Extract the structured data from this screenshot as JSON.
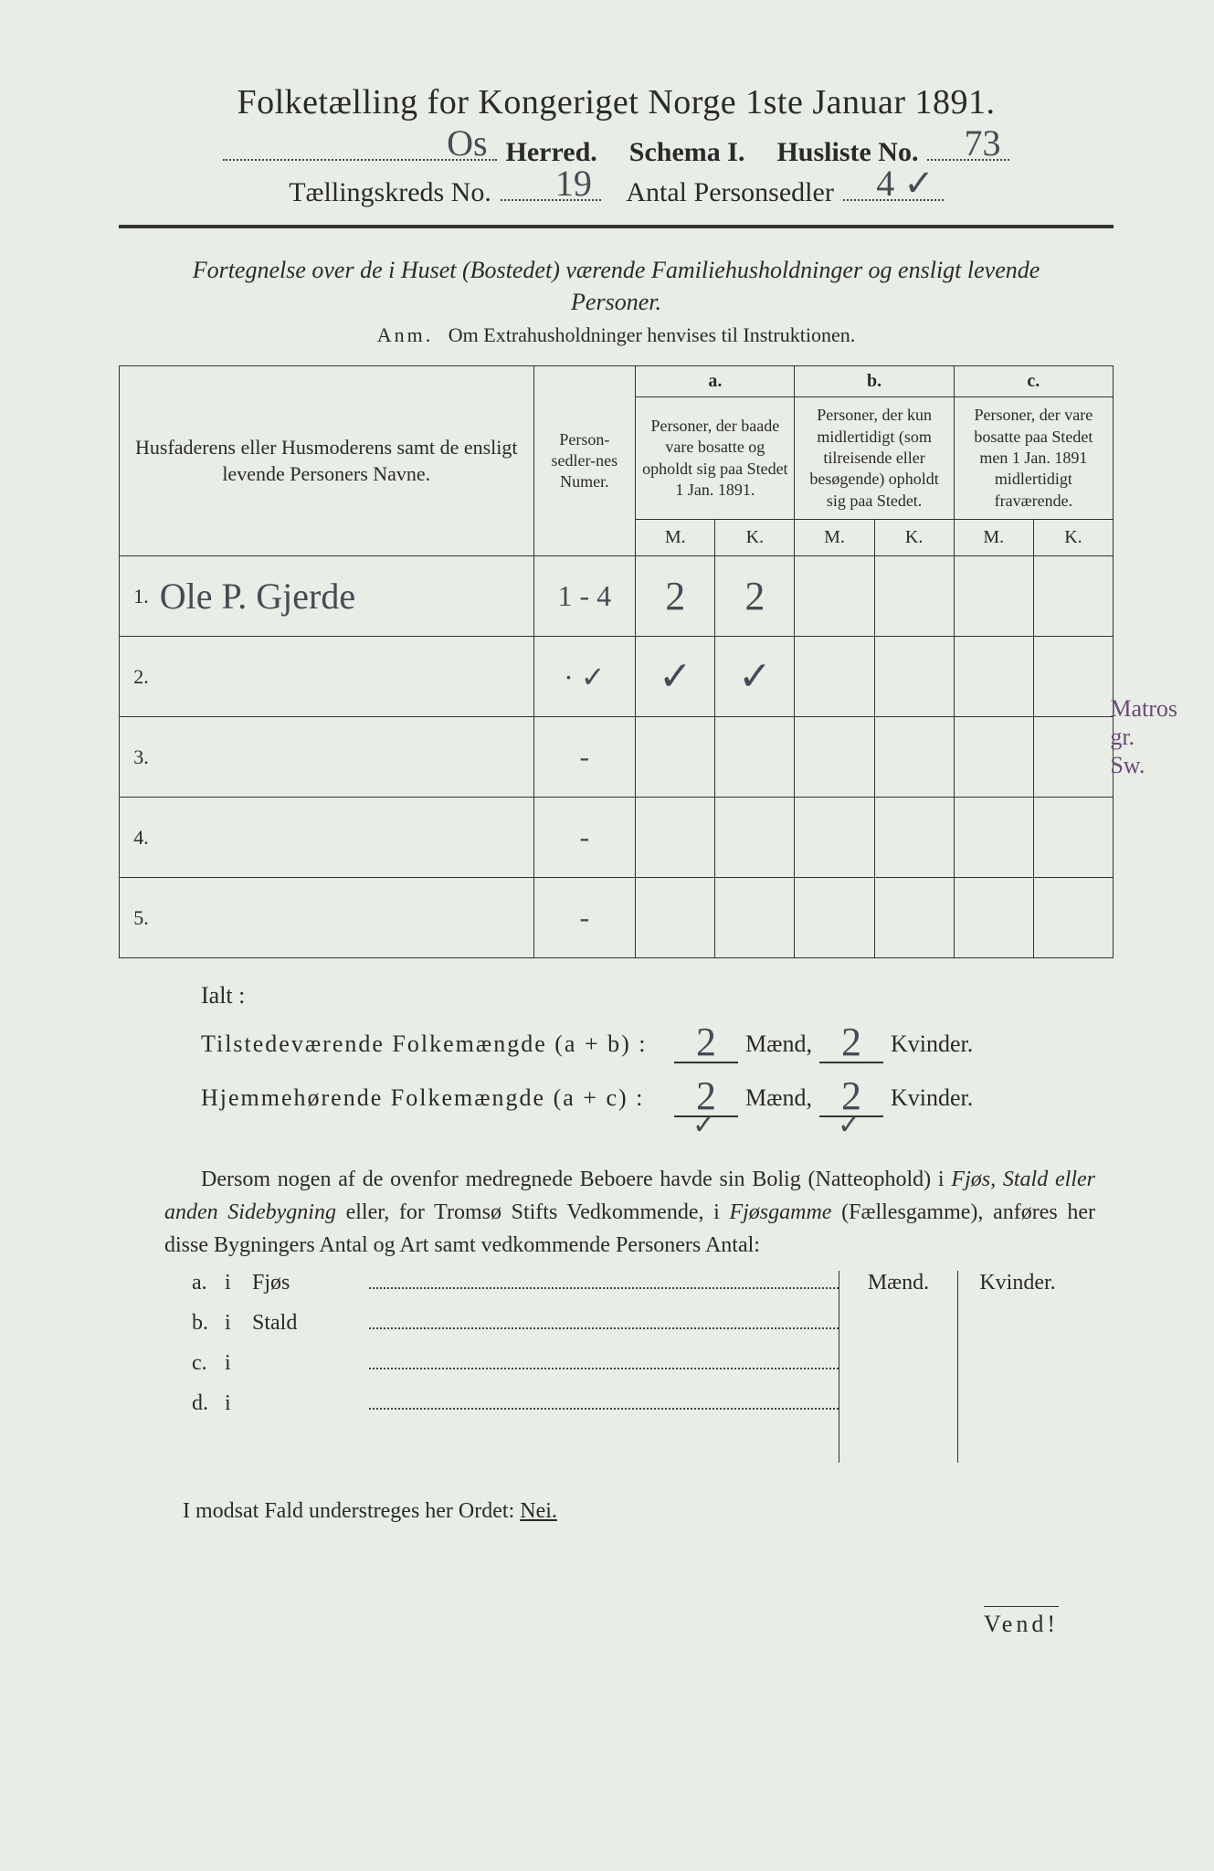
{
  "header": {
    "title": "Folketælling for Kongeriget Norge 1ste Januar 1891.",
    "herred_label": "Herred.",
    "herred_value": "Os",
    "schema_label": "Schema I.",
    "husliste_label": "Husliste No.",
    "husliste_value": "73",
    "kreds_label": "Tællingskreds No.",
    "kreds_value": "19",
    "antal_label": "Antal Personsedler",
    "antal_value": "4 ✓"
  },
  "subtitle": "Fortegnelse over de i Huset (Bostedet) værende Familiehusholdninger og ensligt levende Personer.",
  "anm_label": "Anm.",
  "anm_text": "Om Extrahusholdninger henvises til Instruktionen.",
  "table": {
    "col_name": "Husfaderens eller Husmoderens samt de ensligt levende Personers Navne.",
    "col_ps": "Person-sedler-nes Numer.",
    "col_a_top": "a.",
    "col_a": "Personer, der baade vare bosatte og opholdt sig paa Stedet 1 Jan. 1891.",
    "col_b_top": "b.",
    "col_b": "Personer, der kun midlertidigt (som tilreisende eller besøgende) opholdt sig paa Stedet.",
    "col_c_top": "c.",
    "col_c": "Personer, der vare bosatte paa Stedet men 1 Jan. 1891 midlertidigt fraværende.",
    "mk_m": "M.",
    "mk_k": "K.",
    "rows": [
      {
        "n": "1.",
        "name": "Ole P. Gjerde",
        "ps": "1 - 4",
        "a_m": "2",
        "a_k": "2",
        "b_m": "",
        "b_k": "",
        "c_m": "",
        "c_k": ""
      },
      {
        "n": "2.",
        "name": "",
        "ps": "· ✓",
        "a_m": "✓",
        "a_k": "✓",
        "b_m": "",
        "b_k": "",
        "c_m": "",
        "c_k": ""
      },
      {
        "n": "3.",
        "name": "",
        "ps": "-",
        "a_m": "",
        "a_k": "",
        "b_m": "",
        "b_k": "",
        "c_m": "",
        "c_k": ""
      },
      {
        "n": "4.",
        "name": "",
        "ps": "-",
        "a_m": "",
        "a_k": "",
        "b_m": "",
        "b_k": "",
        "c_m": "",
        "c_k": ""
      },
      {
        "n": "5.",
        "name": "",
        "ps": "-",
        "a_m": "",
        "a_k": "",
        "b_m": "",
        "b_k": "",
        "c_m": "",
        "c_k": ""
      }
    ],
    "margin_note": "Matros\ngr.\nSw."
  },
  "totals": {
    "ialt": "Ialt :",
    "row1_label": "Tilstedeværende Folkemængde (a + b) :",
    "row2_label": "Hjemmehørende Folkemængde (a + c) :",
    "maend": "Mænd,",
    "kvinder": "Kvinder.",
    "r1_m": "2",
    "r1_k": "2",
    "r2_m": "2",
    "r2_k": "2",
    "tick": "✓"
  },
  "para": {
    "text1": "Dersom nogen af de ovenfor medregnede Beboere havde sin Bolig (Natteophold) i ",
    "it1": "Fjøs, Stald eller anden Sidebygning",
    "text2": " eller, for Tromsø Stifts Vedkommende, i ",
    "it2": "Fjøsgamme",
    "text3": " (Fællesgamme), anføres her disse Bygningers Antal og Art samt vedkommende Personers Antal:"
  },
  "subtable": {
    "hdr_m": "Mænd.",
    "hdr_k": "Kvinder.",
    "rows": [
      {
        "a": "a.",
        "i": "i",
        "cat": "Fjøs"
      },
      {
        "a": "b.",
        "i": "i",
        "cat": "Stald"
      },
      {
        "a": "c.",
        "i": "i",
        "cat": ""
      },
      {
        "a": "d.",
        "i": "i",
        "cat": ""
      }
    ]
  },
  "nei_line_pre": "I modsat Fald understreges her Ordet: ",
  "nei_word": "Nei.",
  "vend": "Vend!",
  "colors": {
    "paper": "#e8ede5",
    "ink": "#2a2a2a",
    "handwriting": "#4a4a55",
    "purple_note": "#6a4a7a"
  }
}
